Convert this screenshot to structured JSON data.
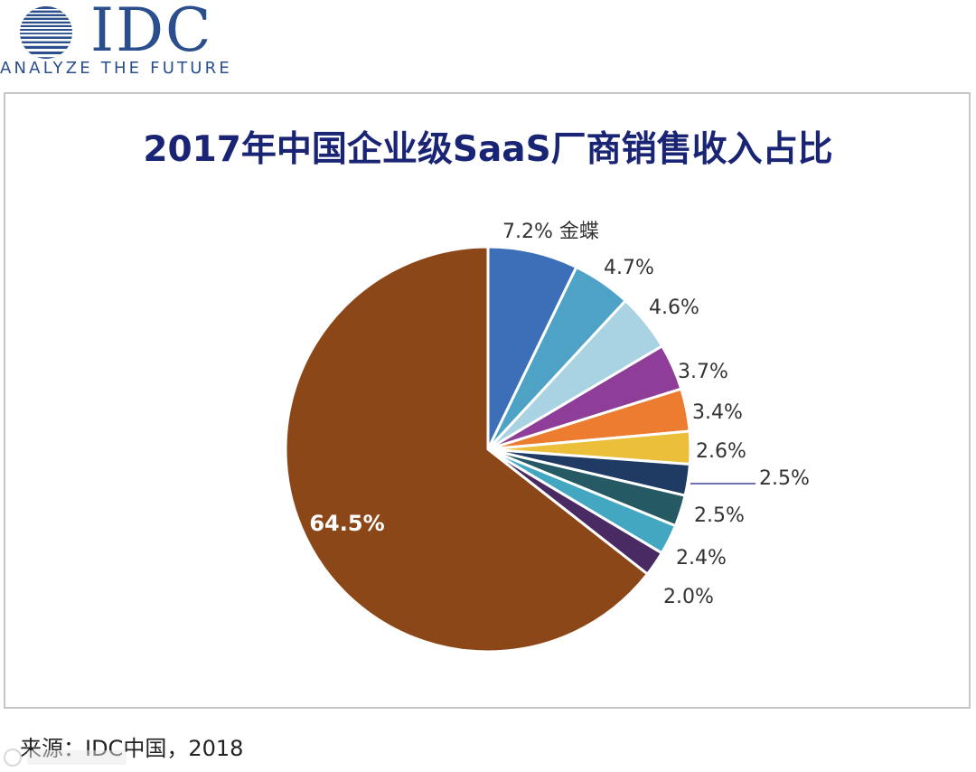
{
  "logo": {
    "text": "IDC",
    "tagline": "ANALYZE THE FUTURE"
  },
  "footer": {
    "source": "来源：IDC中国，2018"
  },
  "colors": {
    "title": "#1a2475",
    "logo": "#2b4e8c"
  },
  "chart_data": {
    "type": "pie",
    "title": "2017年中国企业级SaaS厂商销售收入占比",
    "start_angle_deg": 0,
    "direction": "clockwise",
    "slices": [
      {
        "value": 7.2,
        "label": "7.2% 金蝶",
        "color": "#3d6fb8"
      },
      {
        "value": 4.7,
        "label": "4.7%",
        "color": "#4da2c6"
      },
      {
        "value": 4.6,
        "label": "4.6%",
        "color": "#a9d3e3"
      },
      {
        "value": 3.7,
        "label": "3.7%",
        "color": "#8e3d99"
      },
      {
        "value": 3.4,
        "label": "3.4%",
        "color": "#ec7c30"
      },
      {
        "value": 2.6,
        "label": "2.6%",
        "color": "#ecbf3b"
      },
      {
        "value": 2.5,
        "label": "2.5%",
        "color": "#1f3a63"
      },
      {
        "value": 2.5,
        "label": "2.5%",
        "color": "#255963"
      },
      {
        "value": 2.4,
        "label": "2.4%",
        "color": "#43a7c2"
      },
      {
        "value": 2.0,
        "label": "2.0%",
        "color": "#4a2a63"
      },
      {
        "value": 64.5,
        "label": "64.5%",
        "color": "#8c4718"
      }
    ]
  }
}
